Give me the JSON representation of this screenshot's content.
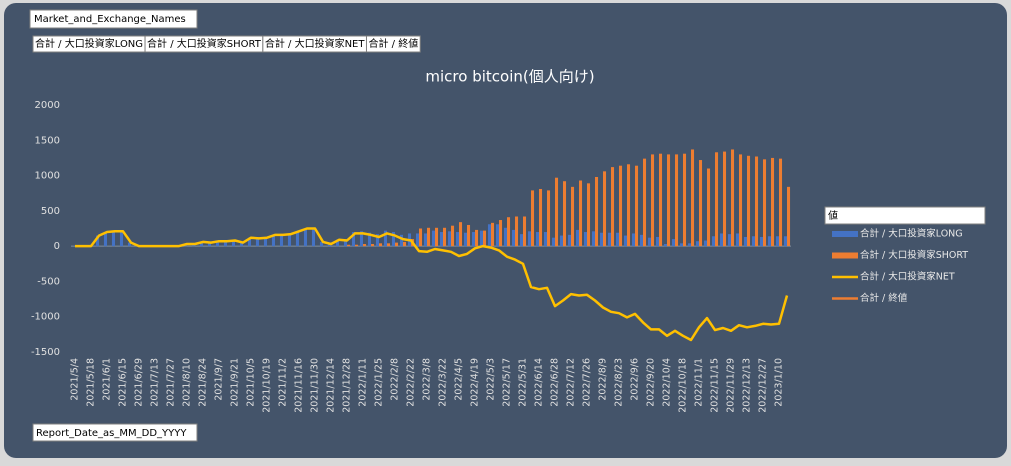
{
  "pivot": {
    "filter_field": "Market_and_Exchange_Names",
    "axis_field": "Report_Date_as_MM_DD_YYYY",
    "legend_header": "値"
  },
  "chart_data": {
    "type": "bar",
    "title": "micro bitcoin(個人向け)",
    "categories": [
      "2021/5/4",
      null,
      "2021/5/18",
      null,
      "2021/6/1",
      null,
      "2021/6/15",
      null,
      "2021/6/29",
      null,
      "2021/7/13",
      null,
      "2021/7/27",
      null,
      "2021/8/10",
      null,
      "2021/8/24",
      null,
      "2021/9/7",
      null,
      "2021/9/21",
      null,
      "2021/10/5",
      null,
      "2021/10/19",
      null,
      "2021/11/2",
      null,
      "2021/11/16",
      null,
      "2021/11/30",
      null,
      "2021/12/14",
      null,
      "2021/12/28",
      null,
      "2022/1/11",
      null,
      "2022/1/25",
      null,
      "2022/2/8",
      null,
      "2022/2/22",
      null,
      "2022/3/8",
      null,
      "2022/3/22",
      null,
      "2022/4/5",
      null,
      "2022/4/19",
      null,
      "2022/5/3",
      null,
      "2022/5/17",
      null,
      "2022/5/31",
      null,
      "2022/6/14",
      null,
      "2022/6/28",
      null,
      "2022/7/12",
      null,
      "2022/7/26",
      null,
      "2022/8/9",
      null,
      "2022/8/23",
      null,
      "2022/9/6",
      null,
      "2022/9/20",
      null,
      "2022/10/4",
      null,
      "2022/10/18",
      null,
      "2022/11/1",
      null,
      "2022/11/15",
      null,
      "2022/11/29",
      null,
      "2022/12/13",
      null,
      "2022/12/27",
      null,
      "2023/1/10",
      null
    ],
    "series": [
      {
        "name": "合計 / 大口投資家LONG",
        "kind": "bar",
        "color": "#4472c4",
        "values": [
          0,
          0,
          0,
          150,
          200,
          210,
          210,
          50,
          0,
          0,
          0,
          0,
          0,
          0,
          30,
          30,
          60,
          50,
          70,
          70,
          80,
          50,
          120,
          110,
          120,
          160,
          160,
          170,
          210,
          250,
          250,
          60,
          30,
          90,
          100,
          200,
          210,
          190,
          170,
          220,
          200,
          160,
          180,
          180,
          180,
          220,
          200,
          210,
          200,
          190,
          200,
          220,
          310,
          310,
          260,
          230,
          170,
          210,
          200,
          200,
          120,
          150,
          160,
          230,
          200,
          210,
          190,
          190,
          190,
          150,
          180,
          160,
          120,
          130,
          30,
          100,
          40,
          40,
          70,
          80,
          140,
          180,
          170,
          180,
          130,
          140,
          130,
          140,
          140,
          140
        ]
      },
      {
        "name": "合計 / 大口投資家SHORT",
        "kind": "bar",
        "color": "#ed7d31",
        "values": [
          0,
          0,
          0,
          0,
          0,
          0,
          0,
          0,
          0,
          0,
          0,
          0,
          0,
          0,
          0,
          0,
          0,
          0,
          0,
          0,
          0,
          0,
          0,
          0,
          0,
          0,
          0,
          0,
          0,
          0,
          0,
          0,
          0,
          0,
          20,
          20,
          30,
          30,
          40,
          40,
          50,
          60,
          100,
          250,
          260,
          260,
          260,
          290,
          340,
          300,
          230,
          220,
          330,
          370,
          410,
          420,
          420,
          790,
          810,
          790,
          970,
          920,
          840,
          930,
          890,
          980,
          1060,
          1120,
          1140,
          1160,
          1140,
          1240,
          1300,
          1310,
          1300,
          1300,
          1310,
          1370,
          1220,
          1100,
          1330,
          1340,
          1370,
          1300,
          1280,
          1270,
          1230,
          1250,
          1240,
          840
        ]
      },
      {
        "name": "合計 / 大口投資家NET",
        "kind": "line",
        "color": "#ffc000",
        "values": [
          0,
          0,
          0,
          150,
          200,
          210,
          210,
          50,
          0,
          0,
          0,
          0,
          0,
          0,
          30,
          30,
          60,
          50,
          70,
          70,
          80,
          50,
          120,
          110,
          120,
          160,
          160,
          170,
          210,
          250,
          250,
          60,
          30,
          90,
          80,
          180,
          180,
          160,
          130,
          180,
          150,
          100,
          80,
          -70,
          -80,
          -40,
          -60,
          -80,
          -140,
          -110,
          -30,
          0,
          -20,
          -60,
          -150,
          -190,
          -250,
          -580,
          -610,
          -590,
          -850,
          -770,
          -680,
          -700,
          -690,
          -770,
          -870,
          -930,
          -950,
          -1010,
          -960,
          -1080,
          -1180,
          -1180,
          -1270,
          -1200,
          -1270,
          -1330,
          -1150,
          -1020,
          -1190,
          -1160,
          -1200,
          -1120,
          -1150,
          -1130,
          -1100,
          -1110,
          -1100,
          -700
        ]
      },
      {
        "name": "合計 / 終値",
        "kind": "line",
        "color": "#ed7d31",
        "axis": "y2",
        "values": [
          null,
          null,
          null,
          null,
          null,
          null,
          null,
          null,
          null,
          null,
          null,
          null,
          null,
          null,
          null,
          null,
          null,
          null,
          null,
          null,
          null,
          null,
          null,
          null,
          null,
          null,
          null,
          null,
          null,
          null,
          null,
          null,
          null,
          null,
          null,
          null,
          null,
          null,
          null,
          null,
          null,
          null,
          null,
          null,
          null,
          null,
          null,
          null,
          null,
          null,
          null,
          null,
          null,
          null,
          null,
          null,
          null,
          null,
          null,
          null,
          null,
          null,
          null,
          null,
          null,
          null,
          null,
          null,
          null,
          null,
          null,
          null,
          null,
          null,
          null,
          null,
          null,
          null,
          null,
          null,
          null,
          null,
          null,
          null,
          null,
          null,
          null,
          null,
          null,
          null
        ]
      }
    ],
    "ylim": [
      -1500,
      2000
    ],
    "yticks": [
      -1500,
      -1000,
      -500,
      0,
      500,
      1000,
      1500,
      2000
    ],
    "grid": false
  }
}
